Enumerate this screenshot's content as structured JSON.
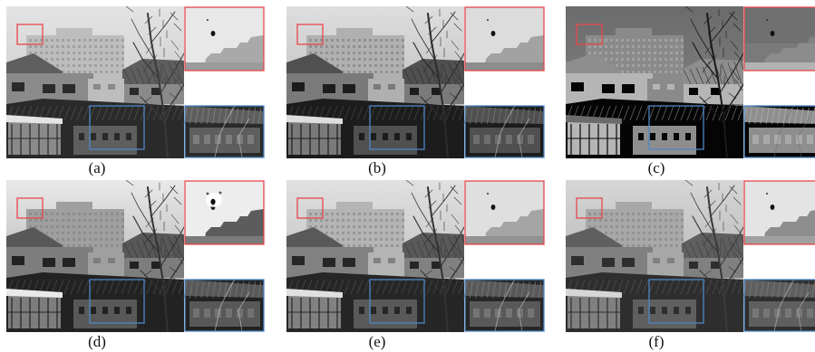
{
  "panels": [
    {
      "label": "(a)",
      "variant": "a"
    },
    {
      "label": "(b)",
      "variant": "b"
    },
    {
      "label": "(c)",
      "variant": "c"
    },
    {
      "label": "(d)",
      "variant": "d"
    },
    {
      "label": "(e)",
      "variant": "e"
    },
    {
      "label": "(f)",
      "variant": "f"
    }
  ],
  "colors": {
    "red_box": "#e8464b",
    "blue_box": "#4f86c6"
  }
}
